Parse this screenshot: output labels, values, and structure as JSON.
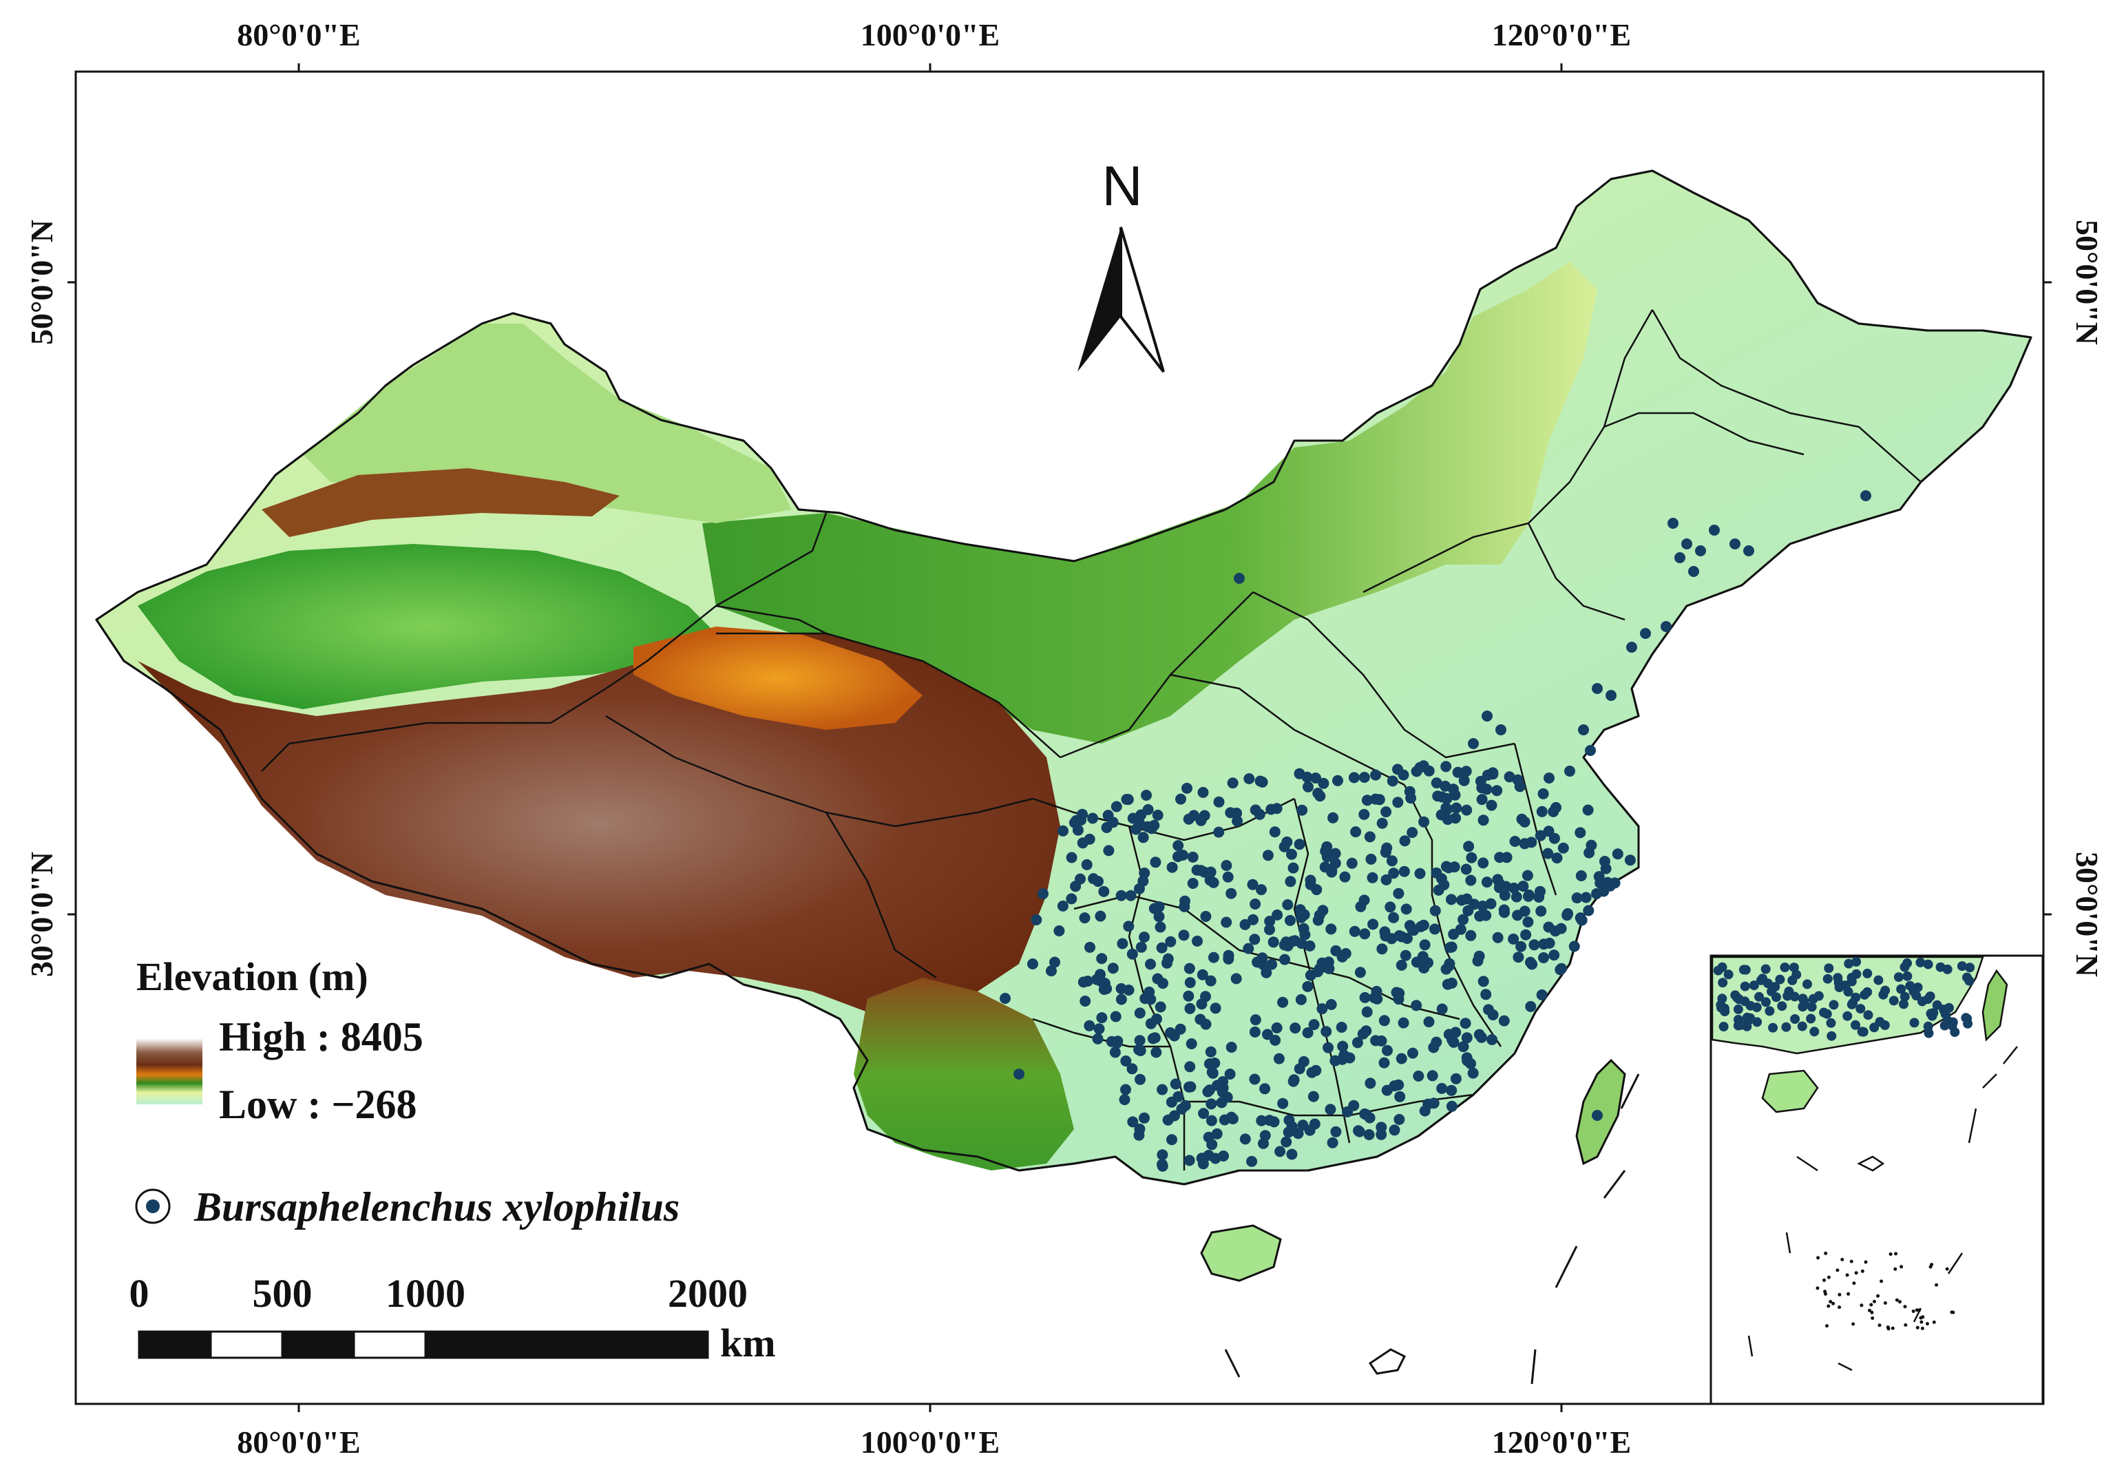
{
  "axes": {
    "longitude_labels": [
      "80°0'0\"E",
      "100°0'0\"E",
      "120°0'0\"E"
    ],
    "latitude_labels": [
      "50°0'0\"N",
      "30°0'0\"N"
    ]
  },
  "north_arrow": {
    "label": "N"
  },
  "legend": {
    "elevation_title": "Elevation (m)",
    "high_label": "High : 8405",
    "low_label": "Low : −268",
    "species_label": "Bursaphelenchus xylophilus",
    "point_color": "#153f63"
  },
  "scale_bar": {
    "ticks": [
      "0",
      "500",
      "1000",
      "2000"
    ],
    "unit": "km"
  },
  "colors": {
    "lowland": "#bdf0c4",
    "mid": "#3e9b2c",
    "highland": "#7a3a1f",
    "peak": "#e8e8e8"
  }
}
